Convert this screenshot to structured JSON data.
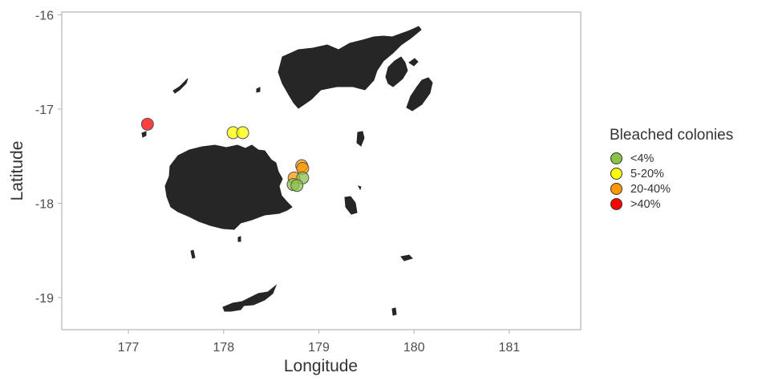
{
  "chart_data": {
    "type": "scatter",
    "title": "",
    "xlabel": "Longitude",
    "ylabel": "Latitude",
    "xlim": [
      176.3,
      181.75
    ],
    "ylim": [
      -19.34,
      -15.97
    ],
    "xticks": [
      "177",
      "178",
      "179",
      "180",
      "181"
    ],
    "yticks": [
      "-16",
      "-17",
      "-18",
      "-19"
    ],
    "legend": {
      "title": "Bleached colonies",
      "position": "right",
      "items": [
        {
          "label": "<4%",
          "color": "#8bc34a"
        },
        {
          "label": "5-20%",
          "color": "#ffff00"
        },
        {
          "label": "20-40%",
          "color": "#ff9900"
        },
        {
          "label": ">40%",
          "color": "#ff0000"
        }
      ]
    },
    "points": [
      {
        "lon": 177.2,
        "lat": -17.16,
        "category": ">40%"
      },
      {
        "lon": 178.1,
        "lat": -17.25,
        "category": "5-20%"
      },
      {
        "lon": 178.2,
        "lat": -17.25,
        "category": "5-20%"
      },
      {
        "lon": 178.82,
        "lat": -17.6,
        "category": "20-40%"
      },
      {
        "lon": 178.83,
        "lat": -17.63,
        "category": "20-40%"
      },
      {
        "lon": 178.74,
        "lat": -17.73,
        "category": "20-40%"
      },
      {
        "lon": 178.83,
        "lat": -17.73,
        "category": "<4%"
      },
      {
        "lon": 178.73,
        "lat": -17.8,
        "category": "<4%"
      },
      {
        "lon": 178.77,
        "lat": -17.81,
        "category": "<4%"
      }
    ],
    "grid": false,
    "land_color": "#262626"
  }
}
